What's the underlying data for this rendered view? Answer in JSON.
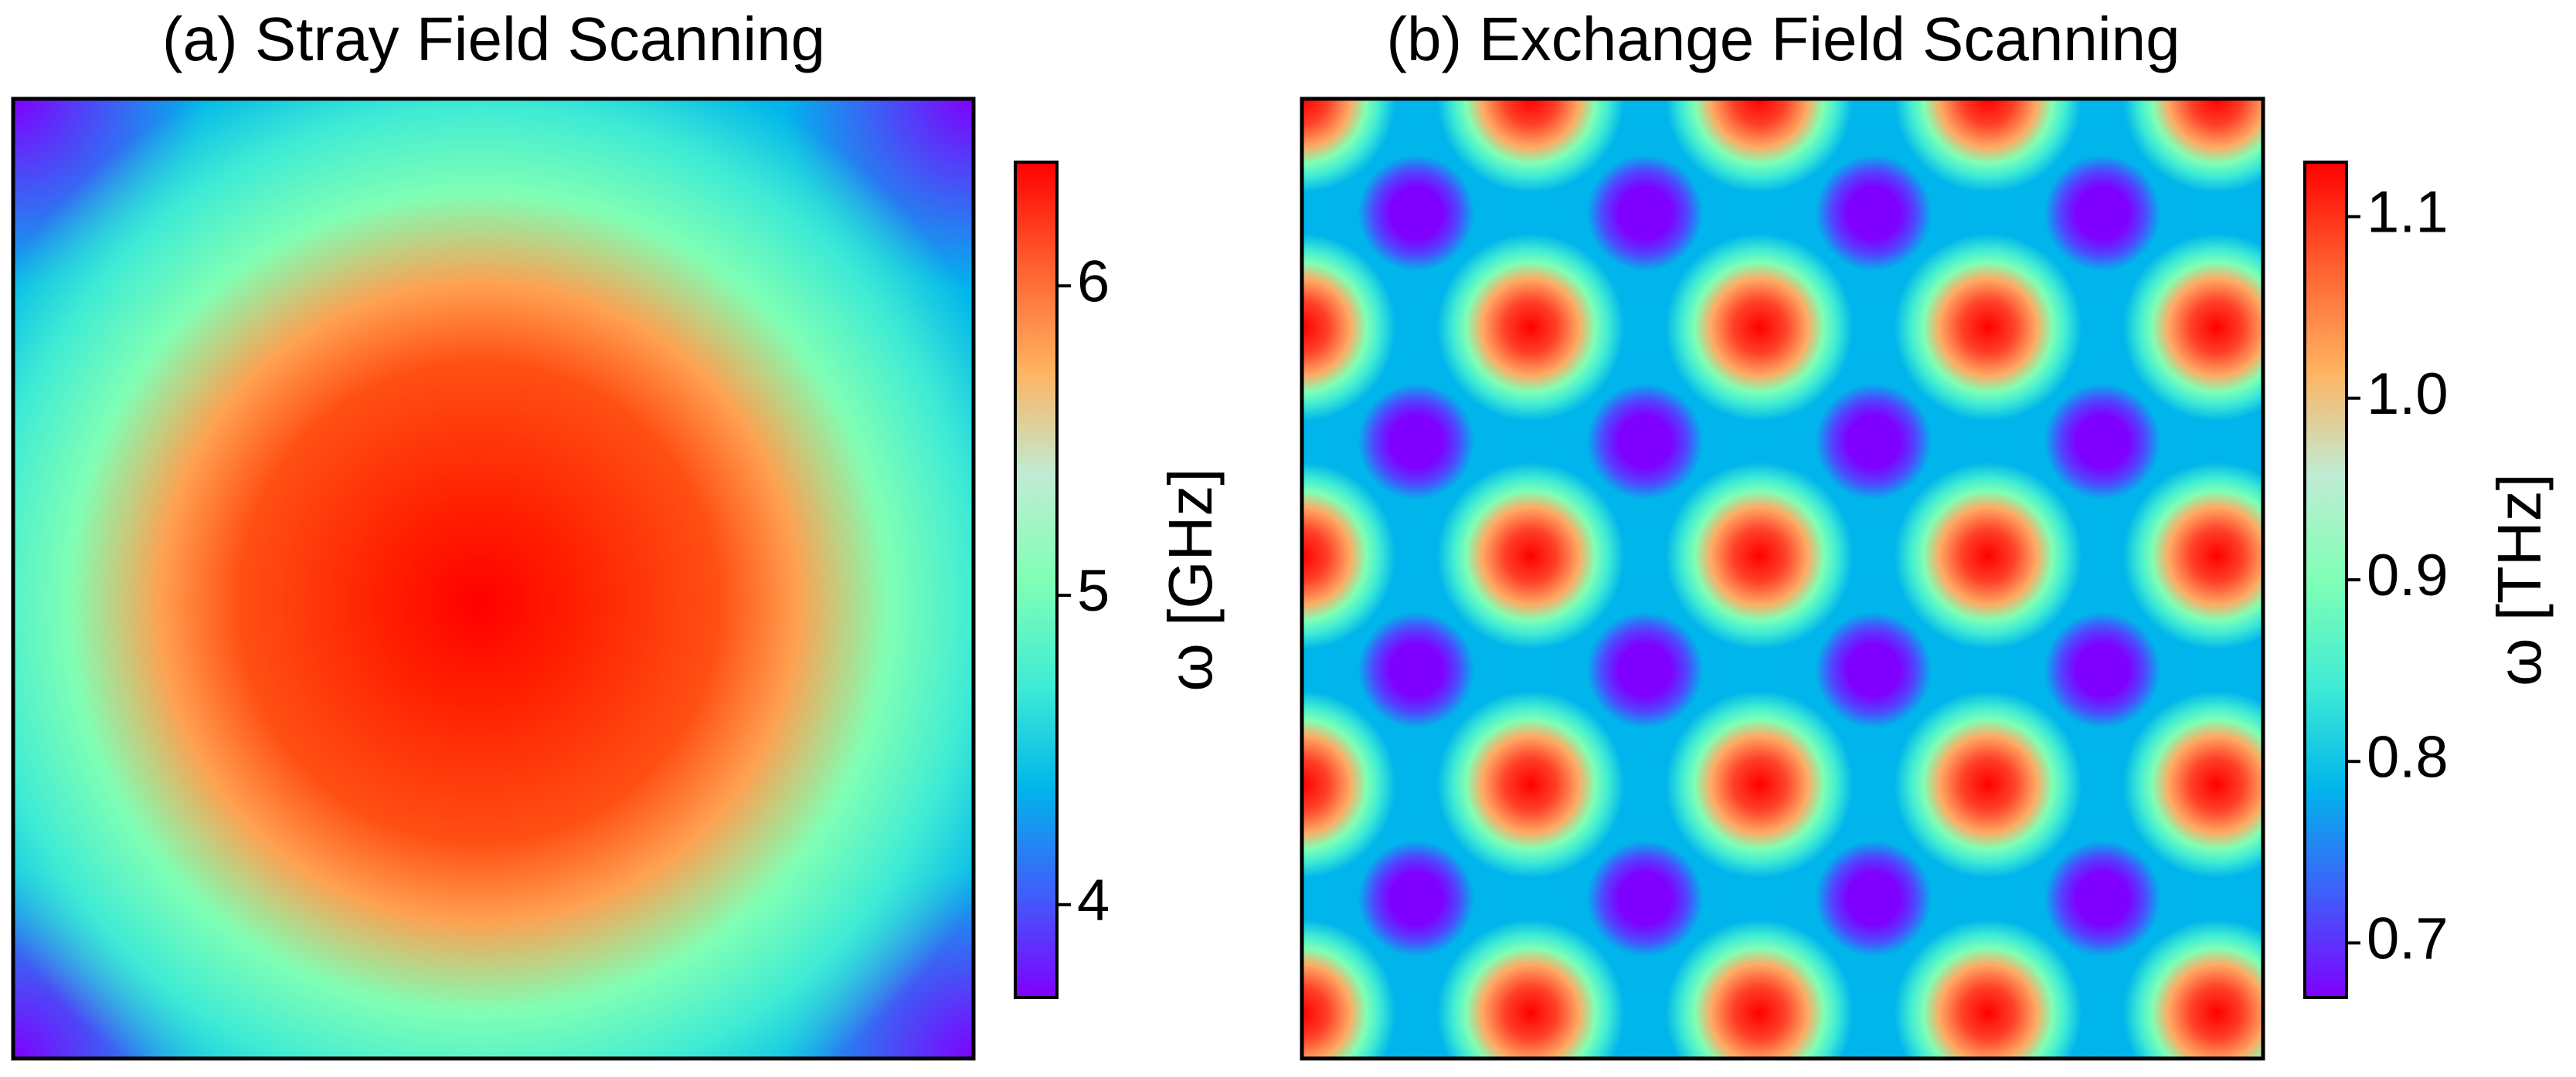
{
  "chart_data": [
    {
      "type": "heatmap",
      "title": "(a) Stray Field Scanning",
      "pattern": "single centered maximum: red core near center, orange ring, green/cyan halo, blue-violet corners",
      "x_axis": "no ticks",
      "y_axis": "no ticks",
      "colormap": "rainbow",
      "colorbar": {
        "label": "ω [GHz]",
        "range": [
          3.7,
          6.4
        ],
        "ticks": [
          4,
          5,
          6
        ],
        "tick_labels": [
          "4",
          "5",
          "6"
        ]
      },
      "value_summary": {
        "center": 6.4,
        "edge_midpoints": 4.8,
        "corners": 3.7
      }
    },
    {
      "type": "heatmap",
      "title": "(b) Exchange Field Scanning",
      "pattern": "periodic lattice of red maxima on a square grid with violet minima between them; cyan/green background",
      "x_axis": "no ticks",
      "y_axis": "no ticks",
      "colormap": "rainbow",
      "colorbar": {
        "label": "ω [THz]",
        "range": [
          0.67,
          1.13
        ],
        "ticks": [
          0.7,
          0.8,
          0.9,
          1.0,
          1.1
        ],
        "tick_labels": [
          "0.7",
          "0.8",
          "0.9",
          "1.0",
          "1.1"
        ]
      },
      "value_summary": {
        "maxima": 1.13,
        "minima": 0.67,
        "background": 0.85
      }
    }
  ]
}
